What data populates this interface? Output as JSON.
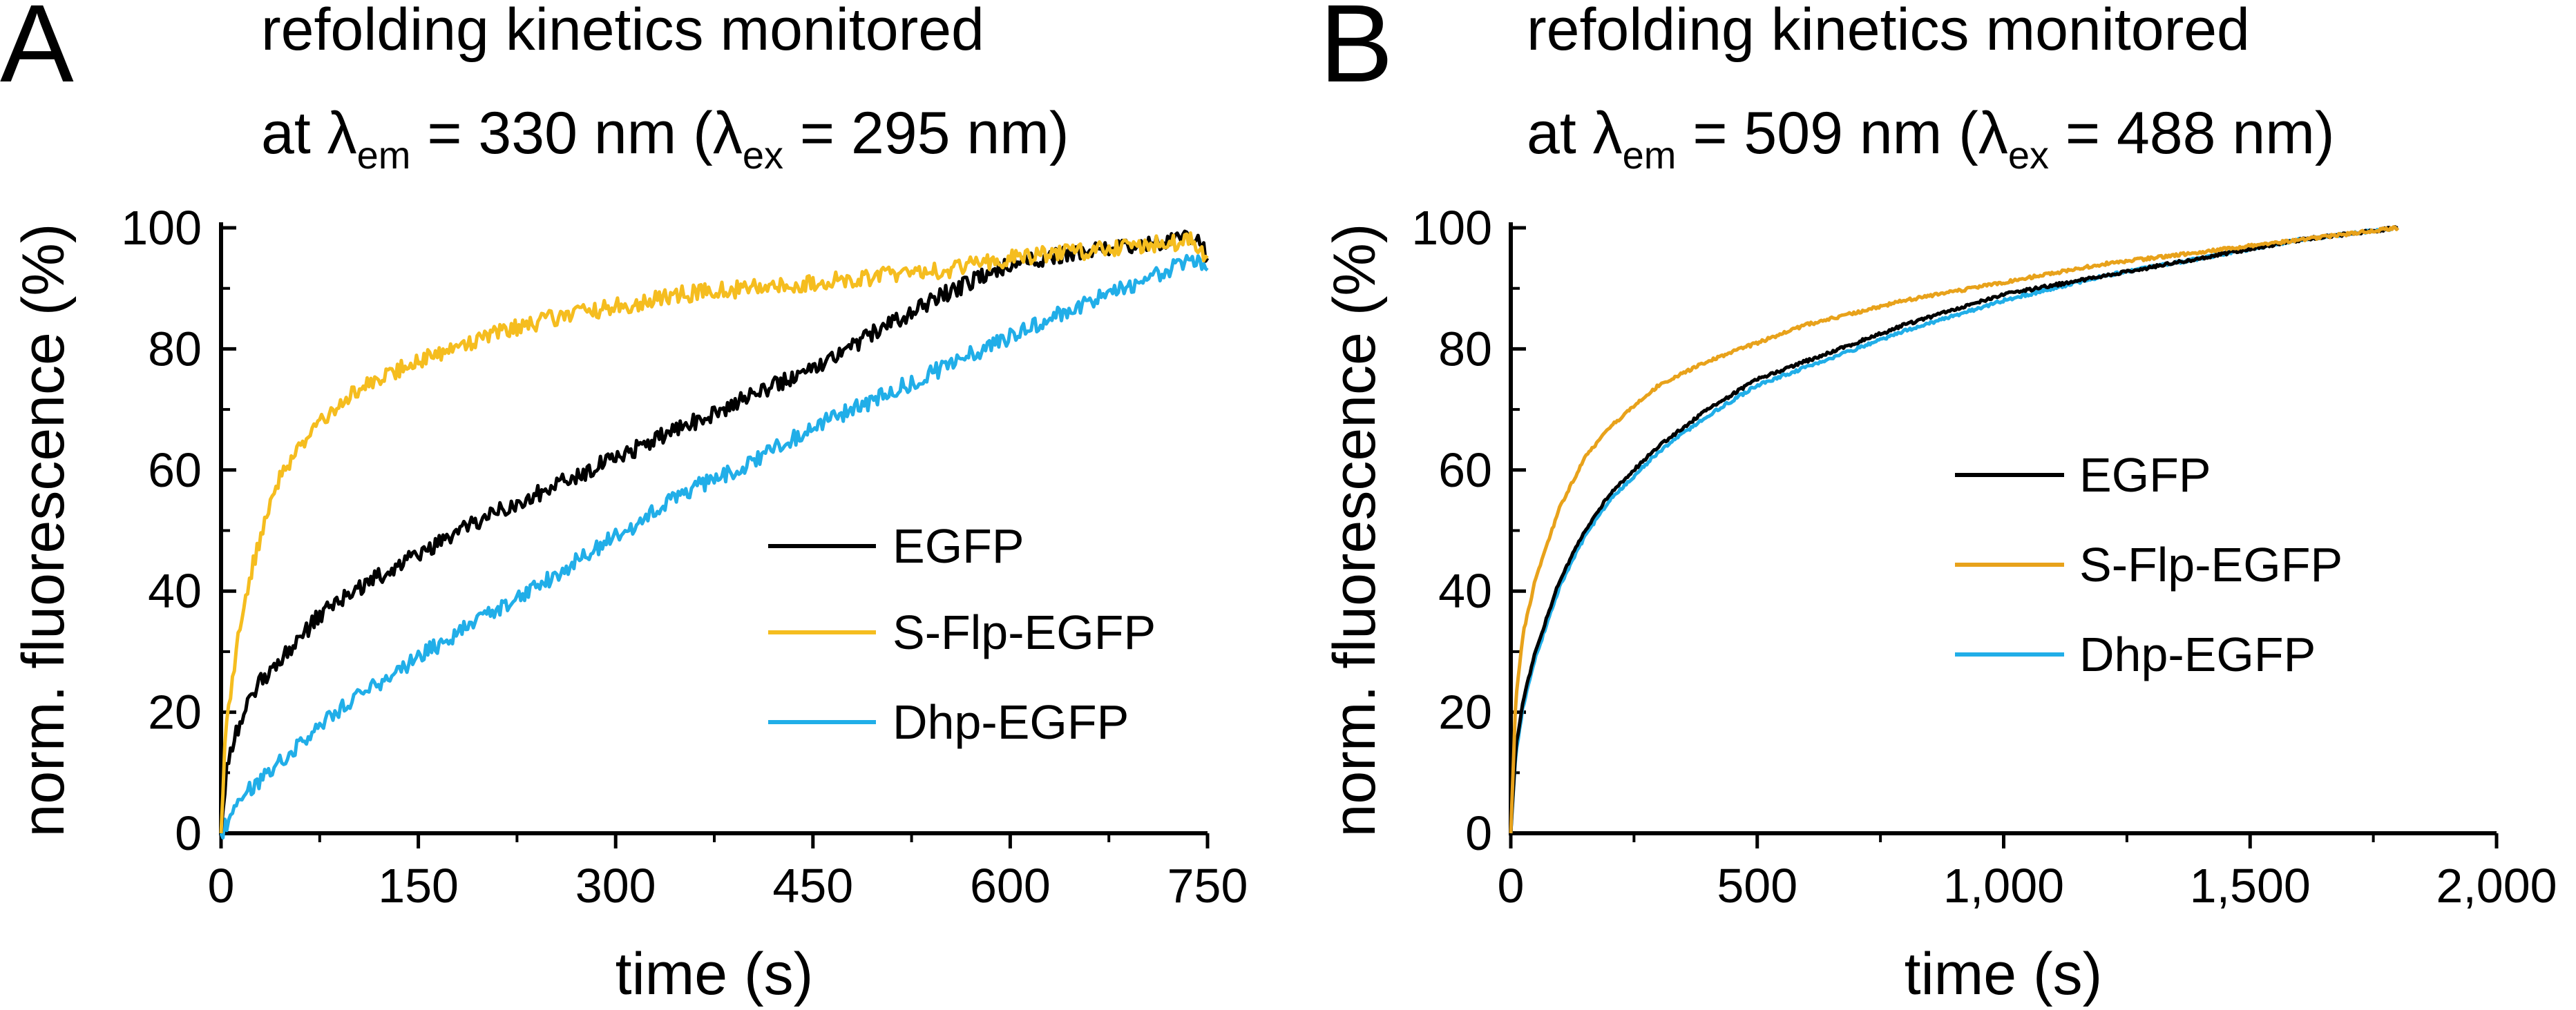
{
  "panels": [
    {
      "letter": "A",
      "title_line1": "refolding kinetics monitored",
      "title_line2": {
        "prefix": "at λ",
        "em_sub": "em",
        "em_value": " = 330 nm  (λ",
        "ex_sub": "ex",
        "ex_value": " = 295 nm)"
      }
    },
    {
      "letter": "B",
      "title_line1": "refolding kinetics monitored",
      "title_line2": {
        "prefix": "at λ",
        "em_sub": "em",
        "em_value": " = 509 nm  (λ",
        "ex_sub": "ex",
        "ex_value": " = 488 nm)"
      }
    }
  ],
  "colors": {
    "EGFP_A": "#000000",
    "SFlp_A": "#f5bd1f",
    "Dhp_A": "#21aee8",
    "EGFP_B": "#000000",
    "SFlp_B": "#e8a21b",
    "Dhp_B": "#21aee8"
  },
  "chart_data": [
    {
      "type": "line",
      "panel": "A",
      "title": "refolding kinetics monitored at λem = 330 nm (λex = 295 nm)",
      "xlabel": "time (s)",
      "ylabel": "norm. fluorescence (%)",
      "xlim": [
        0,
        750
      ],
      "ylim": [
        0,
        100
      ],
      "xticks": [
        0,
        150,
        300,
        450,
        600,
        750
      ],
      "xtick_labels": [
        "0",
        "150",
        "300",
        "450",
        "600",
        "750"
      ],
      "yticks": [
        0,
        20,
        40,
        60,
        80,
        100
      ],
      "ytick_labels": [
        "0",
        "20",
        "40",
        "60",
        "80",
        "100"
      ],
      "legend_position": "center-right",
      "series": [
        {
          "name": "EGFP",
          "color_key": "EGFP_A",
          "x": [
            0,
            5,
            10,
            20,
            30,
            50,
            75,
            100,
            150,
            200,
            250,
            300,
            350,
            400,
            450,
            500,
            550,
            600,
            650,
            700,
            740,
            750
          ],
          "y": [
            0,
            12,
            16,
            21,
            25,
            30,
            36,
            40,
            46,
            52,
            57,
            62,
            67,
            72,
            77,
            83,
            89,
            94,
            96,
            97,
            99,
            95
          ]
        },
        {
          "name": "S-Flp-EGFP",
          "color_key": "SFlp_A",
          "x": [
            0,
            3,
            8,
            15,
            25,
            40,
            50,
            75,
            100,
            150,
            200,
            250,
            300,
            350,
            400,
            450,
            500,
            550,
            600,
            650,
            700,
            740,
            750
          ],
          "y": [
            0,
            15,
            25,
            35,
            45,
            57,
            61,
            68,
            73,
            78,
            82,
            85,
            87,
            89,
            90,
            91,
            92,
            93,
            95,
            96,
            97,
            98,
            95
          ]
        },
        {
          "name": "Dhp-EGFP",
          "color_key": "Dhp_A",
          "x": [
            0,
            10,
            20,
            50,
            75,
            100,
            150,
            200,
            250,
            300,
            350,
            400,
            450,
            500,
            550,
            600,
            650,
            700,
            740,
            750
          ],
          "y": [
            0,
            4,
            7,
            13,
            18,
            22,
            29,
            36,
            42,
            49,
            56,
            61,
            67,
            72,
            77,
            82,
            87,
            91,
            95,
            93
          ]
        }
      ]
    },
    {
      "type": "line",
      "panel": "B",
      "title": "refolding kinetics monitored at λem = 509 nm (λex = 488 nm)",
      "xlabel": "time (s)",
      "ylabel": "norm. fluorescence (%)",
      "xlim": [
        0,
        2000
      ],
      "ylim": [
        0,
        100
      ],
      "xticks": [
        0,
        500,
        1000,
        1500,
        2000
      ],
      "xtick_labels": [
        "0",
        "500",
        "1,000",
        "1,500",
        "2,000"
      ],
      "yticks": [
        0,
        20,
        40,
        60,
        80,
        100
      ],
      "ytick_labels": [
        "0",
        "20",
        "40",
        "60",
        "80",
        "100"
      ],
      "legend_position": "center-right",
      "series": [
        {
          "name": "EGFP",
          "color_key": "EGFP_B",
          "x": [
            0,
            10,
            25,
            50,
            100,
            150,
            200,
            300,
            400,
            500,
            600,
            800,
            1000,
            1200,
            1400,
            1600,
            1800
          ],
          "y": [
            0,
            14,
            22,
            30,
            42,
            50,
            56,
            64,
            70,
            75,
            78,
            84,
            89,
            92,
            95,
            98,
            100
          ]
        },
        {
          "name": "S-Flp-EGFP",
          "color_key": "SFlp_B",
          "x": [
            0,
            10,
            25,
            50,
            100,
            150,
            200,
            300,
            400,
            500,
            600,
            800,
            1000,
            1200,
            1400,
            1600,
            1800
          ],
          "y": [
            0,
            22,
            33,
            42,
            54,
            62,
            67,
            74,
            78,
            81,
            84,
            88,
            91,
            94,
            96,
            98,
            100
          ]
        },
        {
          "name": "Dhp-EGFP",
          "color_key": "Dhp_B",
          "x": [
            0,
            10,
            25,
            50,
            100,
            150,
            200,
            300,
            400,
            500,
            600,
            800,
            1000,
            1200,
            1400,
            1600,
            1800
          ],
          "y": [
            0,
            13,
            21,
            29,
            41,
            49,
            55,
            63,
            69,
            74,
            77,
            83,
            88,
            92,
            95,
            98,
            100
          ]
        }
      ]
    }
  ]
}
